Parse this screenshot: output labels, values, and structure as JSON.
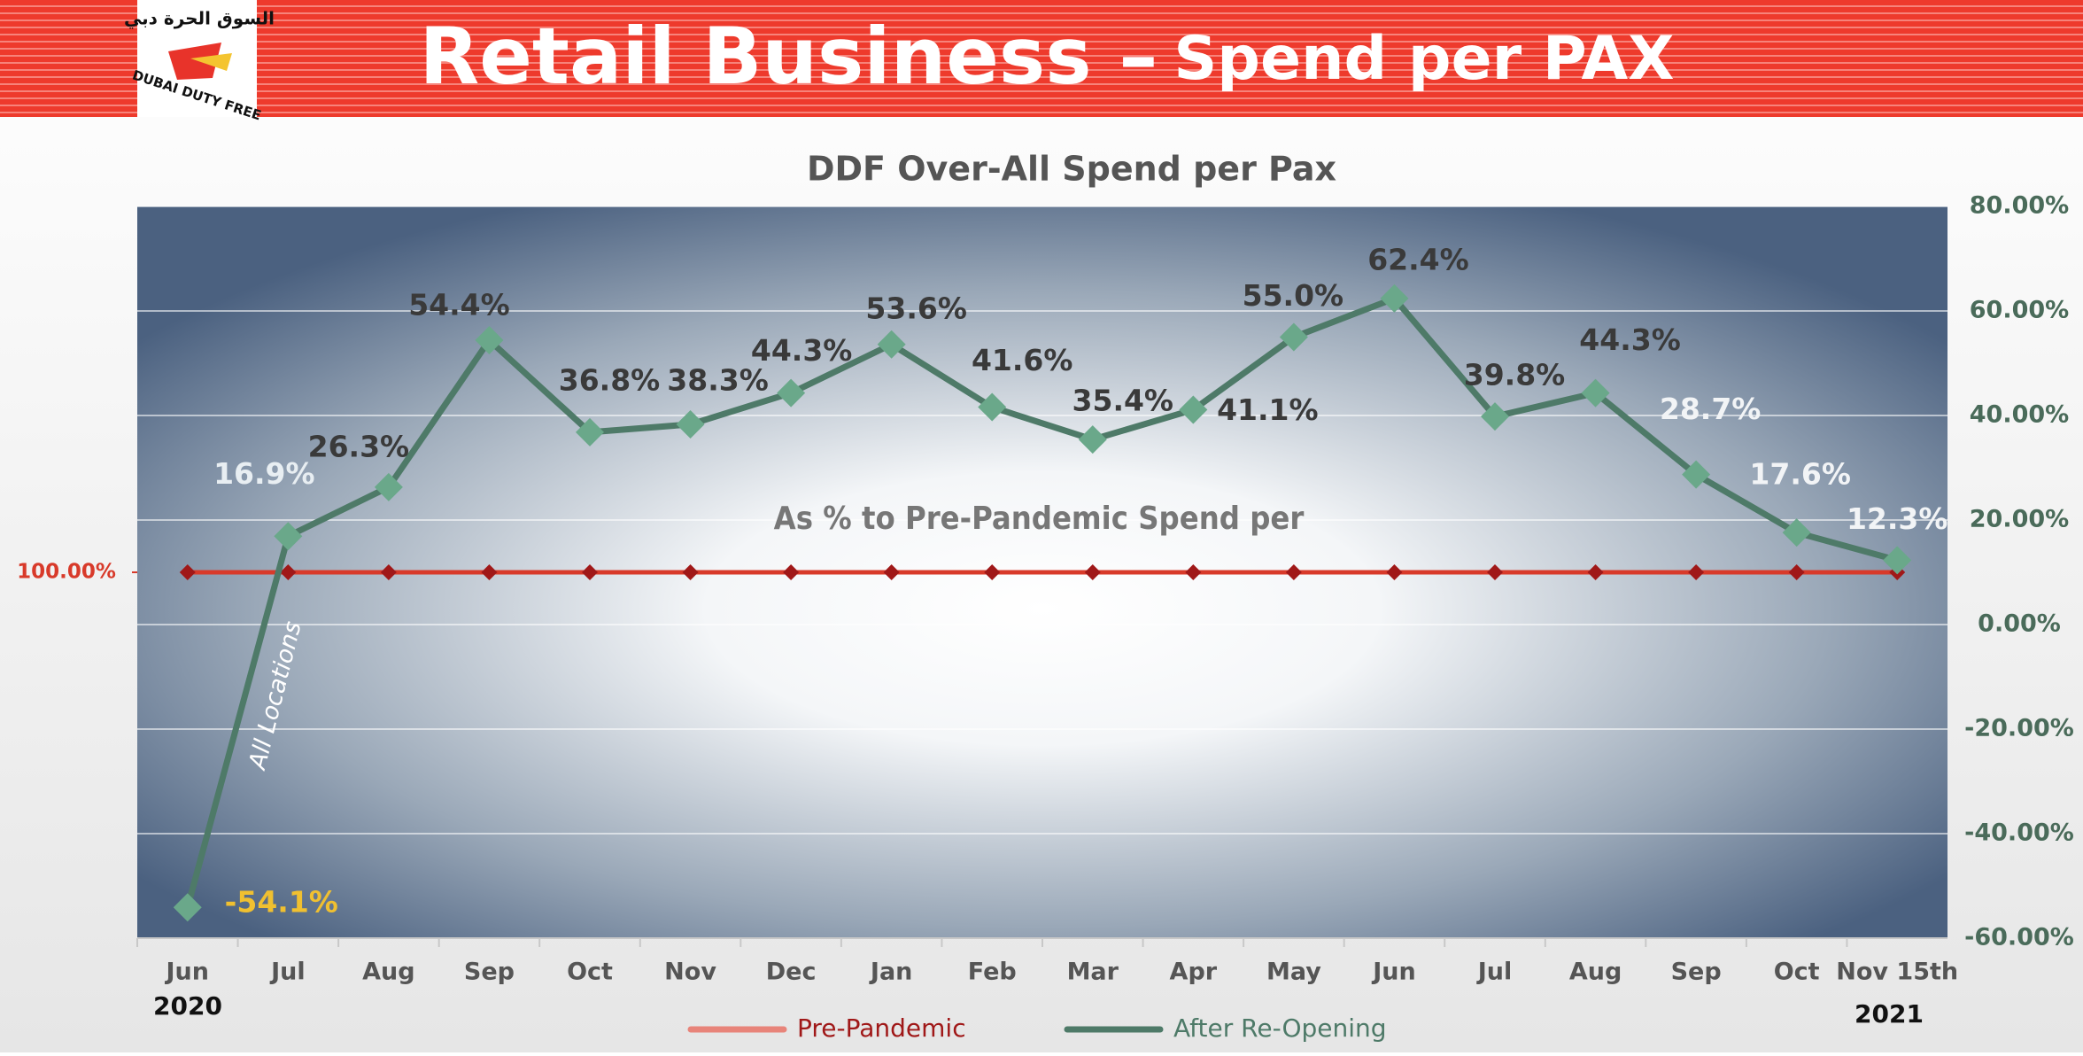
{
  "header": {
    "title_main": "Retail Business –",
    "title_sub": "Spend per PAX",
    "logo_text": "DUBAI DUTY FREE",
    "logo_arabic": "السوق الحرة دبي"
  },
  "chart_data": {
    "type": "line",
    "title": "DDF Over-All Spend per Pax",
    "annotations": [
      "As % to Pre-Pandemic Spend per",
      "All Locations"
    ],
    "year_labels": [
      "2020",
      "2021"
    ],
    "categories": [
      "Jun",
      "Jul",
      "Aug",
      "Sep",
      "Oct",
      "Nov",
      "Dec",
      "Jan",
      "Feb",
      "Mar",
      "Apr",
      "May",
      "Jun",
      "Jul",
      "Aug",
      "Sep",
      "Oct",
      "Nov 15th"
    ],
    "ylim": [
      0,
      200
    ],
    "yticks": [
      {
        "value": 100,
        "label": "100.00%"
      }
    ],
    "y2lim": [
      -60,
      80
    ],
    "y2ticks": [
      {
        "value": -60,
        "label": "-60.00%"
      },
      {
        "value": -40,
        "label": "-40.00%"
      },
      {
        "value": -20,
        "label": "-20.00%"
      },
      {
        "value": 0,
        "label": "0.00%"
      },
      {
        "value": 20,
        "label": "20.00%"
      },
      {
        "value": 40,
        "label": "40.00%"
      },
      {
        "value": 60,
        "label": "60.00%"
      },
      {
        "value": 80,
        "label": "80.00%"
      }
    ],
    "grid": true,
    "legend": "bottom",
    "series": [
      {
        "name": "Pre-Pandemic",
        "color": "#d83a2a",
        "legend_color": "#e8847a",
        "marker_color": "#a01818",
        "axis": "y",
        "values": [
          100,
          100,
          100,
          100,
          100,
          100,
          100,
          100,
          100,
          100,
          100,
          100,
          100,
          100,
          100,
          100,
          100,
          100
        ]
      },
      {
        "name": "After Re-Opening",
        "color": "#4e7a68",
        "marker_color": "#6aa88a",
        "axis": "y2",
        "values": [
          -54.1,
          16.9,
          26.3,
          54.4,
          36.8,
          38.3,
          44.3,
          53.6,
          41.6,
          35.4,
          41.1,
          55.0,
          62.4,
          39.8,
          44.3,
          28.7,
          17.6,
          12.3
        ],
        "value_labels": [
          "-54.1%",
          "16.9%",
          "26.3%",
          "54.4%",
          "36.8%",
          "38.3%",
          "44.3%",
          "53.6%",
          "41.6%",
          "35.4%",
          "41.1%",
          "55.0%",
          "62.4%",
          "39.8%",
          "44.3%",
          "28.7%",
          "17.6%",
          "12.3%"
        ],
        "value_label_colors": [
          "#f0c030",
          "#e8eef2",
          "#3a3a3a",
          "#3a3a3a",
          "#3a3a3a",
          "#3a3a3a",
          "#3a3a3a",
          "#3a3a3a",
          "#3a3a3a",
          "#3a3a3a",
          "#3a3a3a",
          "#3a3a3a",
          "#3a3a3a",
          "#3a3a3a",
          "#3a3a3a",
          "#f2f4f6",
          "#f2f4f6",
          "#f2f4f6"
        ]
      }
    ]
  }
}
